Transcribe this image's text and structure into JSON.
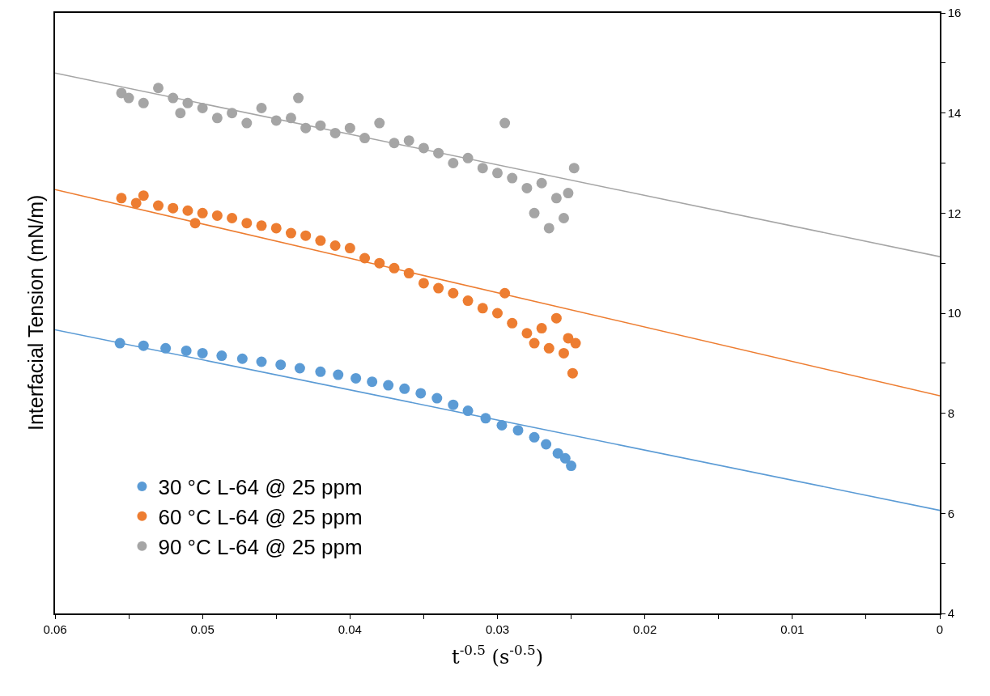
{
  "chart_data": {
    "type": "scatter",
    "xlabel": "t$^{-0.5}$ (s$^{-0.5}$)",
    "ylabel": "Interfacial Tension (mN/m)",
    "grid": false,
    "legend": "bottom left",
    "xlim": [
      0.06,
      0
    ],
    "xticks": [
      0.06,
      {
        "value": 0.055,
        "label": null
      },
      0.05,
      {
        "value": 0.045,
        "label": null
      },
      0.04,
      {
        "value": 0.035,
        "label": null
      },
      0.03,
      {
        "value": 0.025,
        "label": null
      },
      0.02,
      {
        "value": 0.015,
        "label": null
      },
      0.01,
      {
        "value": 0.005,
        "label": null
      },
      0
    ],
    "ylim": [
      4,
      16
    ],
    "yticks": [
      4,
      {
        "value": 5,
        "label": null
      },
      6,
      {
        "value": 7,
        "label": null
      },
      8,
      {
        "value": 9,
        "label": null
      },
      10,
      {
        "value": 11,
        "label": null
      },
      12,
      {
        "value": 13,
        "label": null
      },
      14,
      {
        "value": 15,
        "label": null
      },
      16
    ],
    "series": [
      {
        "name": "30 °C L-64 @ 25 ppm",
        "marker": "circle",
        "color": "#5b9bd5",
        "x": [
          0.0556,
          0.054,
          0.0525,
          0.0511,
          0.05,
          0.0487,
          0.0473,
          0.046,
          0.0447,
          0.0434,
          0.042,
          0.0408,
          0.0396,
          0.0385,
          0.0374,
          0.0363,
          0.0352,
          0.0341,
          0.033,
          0.032,
          0.0308,
          0.0297,
          0.0286,
          0.0275,
          0.0267,
          0.0259,
          0.0254,
          0.025
        ],
        "values": [
          9.4,
          9.35,
          9.3,
          9.25,
          9.2,
          9.15,
          9.09,
          9.03,
          8.97,
          8.9,
          8.83,
          8.77,
          8.7,
          8.63,
          8.56,
          8.49,
          8.4,
          8.3,
          8.17,
          8.05,
          7.9,
          7.76,
          7.66,
          7.52,
          7.38,
          7.2,
          7.1,
          6.95
        ]
      },
      {
        "name": "60 °C L-64 @ 25 ppm",
        "marker": "circle",
        "color": "#ed7d31",
        "x": [
          0.0555,
          0.0545,
          0.054,
          0.053,
          0.052,
          0.051,
          0.0505,
          0.05,
          0.049,
          0.048,
          0.047,
          0.046,
          0.045,
          0.044,
          0.043,
          0.042,
          0.041,
          0.04,
          0.039,
          0.038,
          0.037,
          0.036,
          0.035,
          0.034,
          0.033,
          0.032,
          0.031,
          0.03,
          0.0295,
          0.029,
          0.028,
          0.0275,
          0.027,
          0.0265,
          0.026,
          0.0255,
          0.0252,
          0.0249,
          0.0247
        ],
        "values": [
          12.3,
          12.2,
          12.35,
          12.15,
          12.1,
          12.05,
          11.8,
          12.0,
          11.95,
          11.9,
          11.8,
          11.75,
          11.7,
          11.6,
          11.55,
          11.45,
          11.35,
          11.3,
          11.1,
          11.0,
          10.9,
          10.8,
          10.6,
          10.5,
          10.4,
          10.25,
          10.1,
          10.0,
          10.4,
          9.8,
          9.6,
          9.4,
          9.7,
          9.3,
          9.9,
          9.2,
          9.5,
          8.8,
          9.4
        ]
      },
      {
        "name": "90 °C L-64 @ 25 ppm",
        "marker": "circle",
        "color": "#a5a5a5",
        "x": [
          0.0555,
          0.055,
          0.054,
          0.053,
          0.052,
          0.0515,
          0.051,
          0.05,
          0.049,
          0.048,
          0.047,
          0.046,
          0.045,
          0.044,
          0.0435,
          0.043,
          0.042,
          0.041,
          0.04,
          0.039,
          0.038,
          0.037,
          0.036,
          0.035,
          0.034,
          0.033,
          0.032,
          0.031,
          0.03,
          0.0295,
          0.029,
          0.028,
          0.0275,
          0.027,
          0.0265,
          0.026,
          0.0255,
          0.0252,
          0.0248
        ],
        "values": [
          14.4,
          14.3,
          14.2,
          14.5,
          14.3,
          14.0,
          14.2,
          14.1,
          13.9,
          14.0,
          13.8,
          14.1,
          13.85,
          13.9,
          14.3,
          13.7,
          13.75,
          13.6,
          13.7,
          13.5,
          13.8,
          13.4,
          13.45,
          13.3,
          13.2,
          13.0,
          13.1,
          12.9,
          12.8,
          13.8,
          12.7,
          12.5,
          12.0,
          12.6,
          11.7,
          12.3,
          11.9,
          12.4,
          12.9
        ]
      },
      {
        "type": "line",
        "marker": "none",
        "color": "#5b9bd5",
        "x": [
          0.06,
          0
        ],
        "values": [
          9.67,
          6.06
        ]
      },
      {
        "type": "line",
        "marker": "none",
        "color": "#ed7d31",
        "x": [
          0.06,
          0
        ],
        "values": [
          12.47,
          8.35
        ]
      },
      {
        "type": "line",
        "marker": "none",
        "color": "#a5a5a5",
        "x": [
          0.06,
          0
        ],
        "values": [
          14.8,
          11.13
        ]
      }
    ]
  }
}
